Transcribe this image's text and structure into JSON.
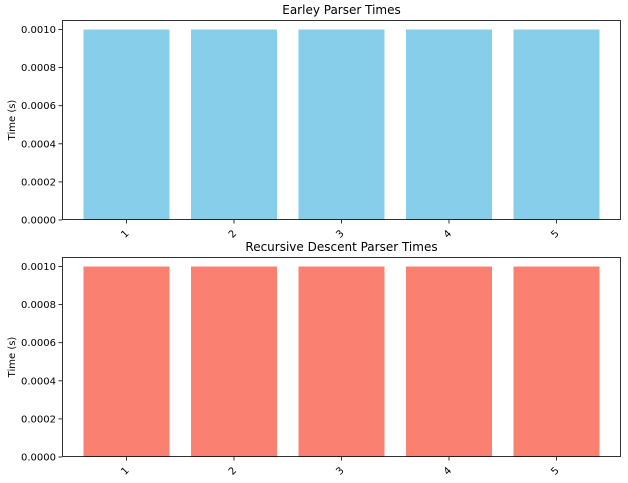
{
  "chart_data": [
    {
      "type": "bar",
      "title": "Earley Parser Times",
      "xlabel": "",
      "ylabel": "Time (s)",
      "categories": [
        "1",
        "2",
        "3",
        "4",
        "5"
      ],
      "values": [
        0.001,
        0.001,
        0.001,
        0.001,
        0.001
      ],
      "ylim": [
        0,
        0.00105
      ],
      "yticks": [
        "0.0000",
        "0.0002",
        "0.0004",
        "0.0006",
        "0.0008",
        "0.0010"
      ],
      "ytick_values": [
        0,
        0.0002,
        0.0004,
        0.0006,
        0.0008,
        0.001
      ],
      "color": "#87CEEB",
      "grid": false,
      "xtick_rotation": 45
    },
    {
      "type": "bar",
      "title": "Recursive Descent Parser Times",
      "xlabel": "",
      "ylabel": "Time (s)",
      "categories": [
        "1",
        "2",
        "3",
        "4",
        "5"
      ],
      "values": [
        0.001,
        0.001,
        0.001,
        0.001,
        0.001
      ],
      "ylim": [
        0,
        0.00105
      ],
      "yticks": [
        "0.0000",
        "0.0002",
        "0.0004",
        "0.0006",
        "0.0008",
        "0.0010"
      ],
      "ytick_values": [
        0,
        0.0002,
        0.0004,
        0.0006,
        0.0008,
        0.001
      ],
      "color": "#FA8072",
      "grid": false,
      "xtick_rotation": 45
    }
  ]
}
